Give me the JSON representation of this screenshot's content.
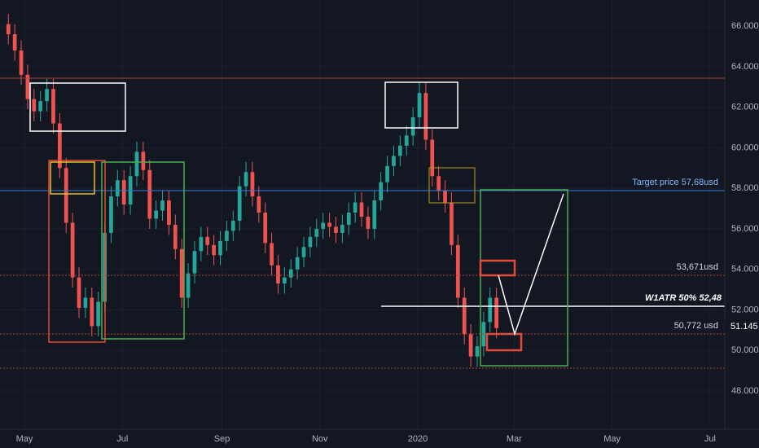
{
  "chart_data": {
    "type": "candlestick",
    "up_color": "#26a69a",
    "down_color": "#ef5350",
    "x": [
      -10,
      -6,
      -2,
      2,
      6,
      10,
      14,
      18,
      22,
      26,
      30,
      34,
      38,
      42,
      46,
      50,
      54,
      58,
      62,
      66,
      70,
      74,
      78,
      82,
      86,
      90,
      94,
      98,
      102,
      106,
      110,
      114,
      118,
      122,
      126,
      130,
      134,
      138,
      142,
      146,
      150,
      154,
      158,
      162,
      166,
      170,
      174,
      178,
      182,
      186,
      190,
      194,
      198,
      202,
      206,
      210,
      214,
      218,
      222,
      226,
      230,
      234,
      238,
      242,
      246,
      250,
      254,
      258,
      262,
      266,
      270,
      274,
      278,
      282,
      286,
      290,
      294
    ],
    "open": [
      66.1,
      65.6,
      64.8,
      63.6,
      62.4,
      61.8,
      62.3,
      62.9,
      61.2,
      59.0,
      56.3,
      53.6,
      52.1,
      52.6,
      51.2,
      52.4,
      55.8,
      57.6,
      58.4,
      57.2,
      58.6,
      59.8,
      58.9,
      56.5,
      56.9,
      57.4,
      56.2,
      55.0,
      52.6,
      53.8,
      54.9,
      55.6,
      55.2,
      54.7,
      55.4,
      55.9,
      56.4,
      58.1,
      58.8,
      57.6,
      56.8,
      55.3,
      54.2,
      53.3,
      53.6,
      54.0,
      54.6,
      55.1,
      55.6,
      56.0,
      56.3,
      56.1,
      55.8,
      56.2,
      56.8,
      57.3,
      56.6,
      56.0,
      57.4,
      58.3,
      59.1,
      59.6,
      60.1,
      60.6,
      61.5,
      62.7,
      60.4,
      58.6,
      57.9,
      57.3,
      55.2,
      52.6,
      50.8,
      49.7,
      50.2,
      51.4,
      52.6
    ],
    "high": [
      66.6,
      66.1,
      65.3,
      64.1,
      62.9,
      62.8,
      63.4,
      63.4,
      61.7,
      59.5,
      56.8,
      54.1,
      53.1,
      53.1,
      52.9,
      56.3,
      58.1,
      58.9,
      58.9,
      59.1,
      60.3,
      60.3,
      59.4,
      57.4,
      57.9,
      57.9,
      56.7,
      55.5,
      54.3,
      55.4,
      56.1,
      56.1,
      55.7,
      55.9,
      56.4,
      56.9,
      58.6,
      59.3,
      59.3,
      58.1,
      57.3,
      55.8,
      54.7,
      54.1,
      54.5,
      55.1,
      55.6,
      56.1,
      56.5,
      56.8,
      56.8,
      56.6,
      56.7,
      57.3,
      57.8,
      57.8,
      57.1,
      57.9,
      58.8,
      59.6,
      60.1,
      60.6,
      61.1,
      62.0,
      63.2,
      63.2,
      60.9,
      59.1,
      58.4,
      57.8,
      55.7,
      53.1,
      51.3,
      50.7,
      51.9,
      53.1,
      53.1
    ],
    "low": [
      65.1,
      64.3,
      63.1,
      61.9,
      61.3,
      61.3,
      61.8,
      60.7,
      58.5,
      55.8,
      53.1,
      51.6,
      51.6,
      50.7,
      50.7,
      51.9,
      55.3,
      57.1,
      56.7,
      56.7,
      58.1,
      58.4,
      56.0,
      56.0,
      56.4,
      55.7,
      54.5,
      52.1,
      52.1,
      53.3,
      54.4,
      54.7,
      54.2,
      54.2,
      54.9,
      55.4,
      55.9,
      57.6,
      57.1,
      56.3,
      54.8,
      53.7,
      52.8,
      52.8,
      53.1,
      53.5,
      54.1,
      54.6,
      55.1,
      55.5,
      55.6,
      55.3,
      55.3,
      55.7,
      56.3,
      56.1,
      55.5,
      55.5,
      56.9,
      57.8,
      58.6,
      59.1,
      59.6,
      60.1,
      61.0,
      59.9,
      58.1,
      57.4,
      56.8,
      54.7,
      52.1,
      50.3,
      49.2,
      49.2,
      49.7,
      50.9,
      50.6
    ],
    "close": [
      65.6,
      64.8,
      63.6,
      62.4,
      61.8,
      62.3,
      62.9,
      61.2,
      59.0,
      56.3,
      53.6,
      52.1,
      52.6,
      51.2,
      52.4,
      55.8,
      57.6,
      58.4,
      57.2,
      58.6,
      59.8,
      58.9,
      56.5,
      56.9,
      57.4,
      56.2,
      55.0,
      52.6,
      53.8,
      54.9,
      55.6,
      55.2,
      54.7,
      55.4,
      55.9,
      56.4,
      58.1,
      58.8,
      57.6,
      56.8,
      55.3,
      54.2,
      53.3,
      53.6,
      54.0,
      54.6,
      55.1,
      55.6,
      56.0,
      56.3,
      56.1,
      55.8,
      56.2,
      56.8,
      57.3,
      56.6,
      56.0,
      57.4,
      58.3,
      59.1,
      59.6,
      60.1,
      60.6,
      61.5,
      62.7,
      60.4,
      58.6,
      57.9,
      57.3,
      55.2,
      52.6,
      50.8,
      49.7,
      50.2,
      51.4,
      52.6,
      51.1
    ],
    "xlim": [
      -15.2,
      436.2
    ],
    "xticks": [
      {
        "value": 0,
        "label": "May"
      },
      {
        "value": 61,
        "label": "Jul"
      },
      {
        "value": 123,
        "label": "Sep"
      },
      {
        "value": 184,
        "label": "Nov"
      },
      {
        "value": 245,
        "label": "2020"
      },
      {
        "value": 305,
        "label": "Mar"
      },
      {
        "value": 366,
        "label": "May"
      },
      {
        "value": 427,
        "label": "Jul"
      }
    ],
    "ylim": [
      46.11,
      67.29
    ],
    "yticks": [
      {
        "value": 48,
        "label": "48.000"
      },
      {
        "value": 50,
        "label": "50.000"
      },
      {
        "value": 52,
        "label": "52.000"
      },
      {
        "value": 54,
        "label": "54.000"
      },
      {
        "value": 56,
        "label": "56.000"
      },
      {
        "value": 58,
        "label": "58.000"
      },
      {
        "value": 60,
        "label": "60.000"
      },
      {
        "value": 62,
        "label": "62.000"
      },
      {
        "value": 64,
        "label": "64.000"
      },
      {
        "value": 66,
        "label": "66.000"
      }
    ],
    "grid": true,
    "annotations": {
      "target": "Target price 57,68usd",
      "level_high": "53,671usd",
      "atr": "W1ATR 50% 52,48",
      "level_low": "50,772 usd"
    },
    "last_price_label": "51.145"
  }
}
